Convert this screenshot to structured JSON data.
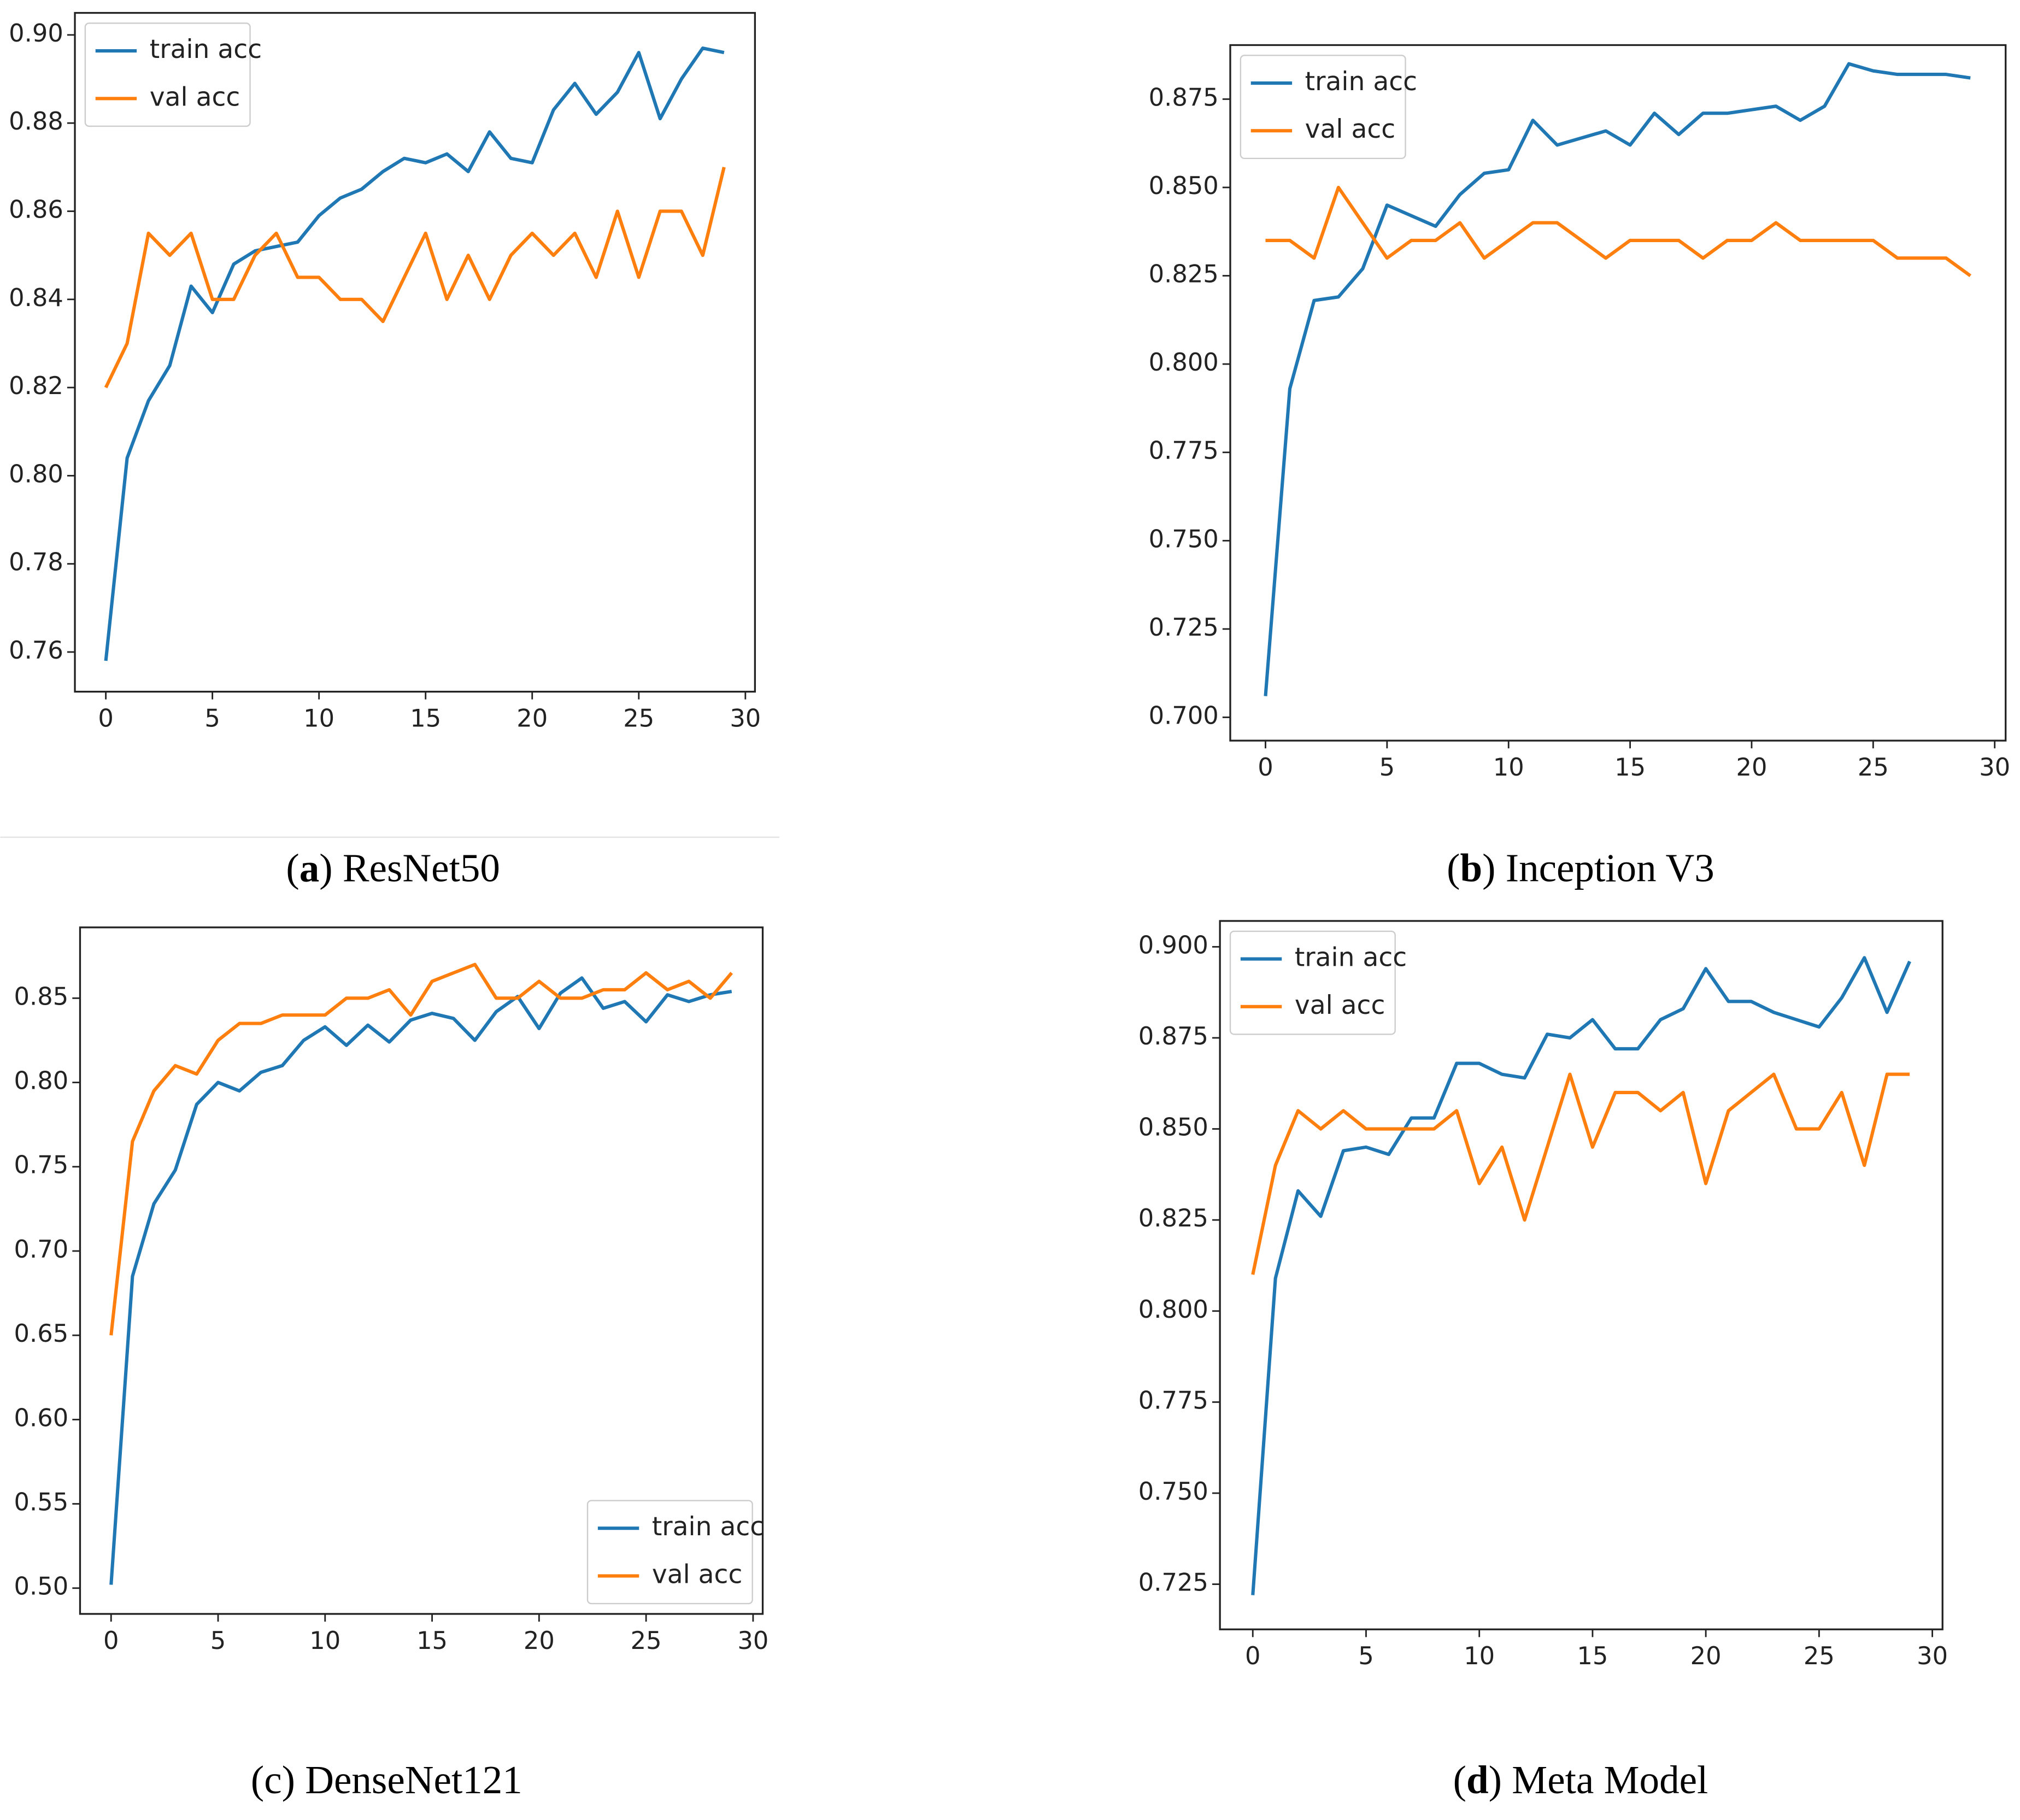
{
  "chart_data": [
    {
      "type": "line",
      "caption": [
        "(",
        "a",
        ") ResNet50"
      ],
      "caption_bold": true,
      "x": [
        0,
        1,
        2,
        3,
        4,
        5,
        6,
        7,
        8,
        9,
        10,
        11,
        12,
        13,
        14,
        15,
        16,
        17,
        18,
        19,
        20,
        21,
        22,
        23,
        24,
        25,
        26,
        27,
        28,
        29
      ],
      "series": [
        {
          "name": "train acc",
          "color": "#1f77b4",
          "values": [
            0.758,
            0.804,
            0.817,
            0.825,
            0.843,
            0.837,
            0.848,
            0.851,
            0.852,
            0.853,
            0.859,
            0.863,
            0.865,
            0.869,
            0.872,
            0.871,
            0.873,
            0.869,
            0.878,
            0.872,
            0.871,
            0.883,
            0.889,
            0.882,
            0.887,
            0.896,
            0.881,
            0.89,
            0.897,
            0.896
          ]
        },
        {
          "name": "val acc",
          "color": "#ff7f0e",
          "values": [
            0.82,
            0.83,
            0.855,
            0.85,
            0.855,
            0.84,
            0.84,
            0.85,
            0.855,
            0.845,
            0.845,
            0.84,
            0.84,
            0.835,
            0.845,
            0.855,
            0.84,
            0.85,
            0.84,
            0.85,
            0.855,
            0.85,
            0.855,
            0.845,
            0.86,
            0.845,
            0.86,
            0.86,
            0.85,
            0.87
          ]
        }
      ],
      "xlim": [
        -1.45,
        30.45
      ],
      "xticks": [
        0,
        5,
        10,
        15,
        20,
        25,
        30
      ],
      "ylim": [
        0.751,
        0.905
      ],
      "yticks": [
        0.76,
        0.78,
        {
          "value": 0.8,
          "label": "0.80"
        },
        0.82,
        0.84,
        0.86,
        0.88,
        {
          "value": 0.9,
          "label": "0.90"
        }
      ],
      "legend": "upper left"
    },
    {
      "type": "line",
      "caption": [
        "(",
        "b",
        ") Inception V3"
      ],
      "caption_bold": true,
      "x": [
        0,
        1,
        2,
        3,
        4,
        5,
        6,
        7,
        8,
        9,
        10,
        11,
        12,
        13,
        14,
        15,
        16,
        17,
        18,
        19,
        20,
        21,
        22,
        23,
        24,
        25,
        26,
        27,
        28,
        29
      ],
      "series": [
        {
          "name": "train acc",
          "color": "#1f77b4",
          "values": [
            0.706,
            0.793,
            0.818,
            0.819,
            0.827,
            0.845,
            0.842,
            0.839,
            0.848,
            0.854,
            0.855,
            0.869,
            0.862,
            0.864,
            0.866,
            0.862,
            0.871,
            0.865,
            0.871,
            0.871,
            0.872,
            0.873,
            0.869,
            0.873,
            0.885,
            0.883,
            0.882,
            0.882,
            0.882,
            0.881
          ]
        },
        {
          "name": "val acc",
          "color": "#ff7f0e",
          "values": [
            0.835,
            0.835,
            0.83,
            0.85,
            0.84,
            0.83,
            0.835,
            0.835,
            0.84,
            0.83,
            0.835,
            0.84,
            0.84,
            0.835,
            0.83,
            0.835,
            0.835,
            0.835,
            0.83,
            0.835,
            0.835,
            0.84,
            0.835,
            0.835,
            0.835,
            0.835,
            0.83,
            0.83,
            0.83,
            0.825
          ]
        }
      ],
      "xlim": [
        -1.45,
        30.45
      ],
      "xticks": [
        0,
        5,
        10,
        15,
        20,
        25,
        30
      ],
      "ylim": [
        0.6934,
        0.8903
      ],
      "yticks": [
        {
          "value": 0.7,
          "label": "0.700"
        },
        0.725,
        {
          "value": 0.75,
          "label": "0.750"
        },
        0.775,
        {
          "value": 0.8,
          "label": "0.800"
        },
        0.825,
        {
          "value": 0.85,
          "label": "0.850"
        },
        0.875
      ],
      "legend": "upper left"
    },
    {
      "type": "line",
      "caption": [
        "(",
        "c",
        ") DenseNet121"
      ],
      "caption_bold": false,
      "x": [
        0,
        1,
        2,
        3,
        4,
        5,
        6,
        7,
        8,
        9,
        10,
        11,
        12,
        13,
        14,
        15,
        16,
        17,
        18,
        19,
        20,
        21,
        22,
        23,
        24,
        25,
        26,
        27,
        28,
        29
      ],
      "series": [
        {
          "name": "train acc",
          "color": "#1f77b4",
          "values": [
            0.502,
            0.685,
            0.728,
            0.748,
            0.787,
            0.8,
            0.795,
            0.806,
            0.81,
            0.825,
            0.833,
            0.822,
            0.834,
            0.824,
            0.837,
            0.841,
            0.838,
            0.825,
            0.842,
            0.851,
            0.832,
            0.853,
            0.862,
            0.844,
            0.848,
            0.836,
            0.852,
            0.848,
            0.852,
            0.854
          ]
        },
        {
          "name": "val acc",
          "color": "#ff7f0e",
          "values": [
            0.65,
            0.765,
            0.795,
            0.81,
            0.805,
            0.825,
            0.835,
            0.835,
            0.84,
            0.84,
            0.84,
            0.85,
            0.85,
            0.855,
            0.84,
            0.86,
            0.865,
            0.87,
            0.85,
            0.85,
            0.86,
            0.85,
            0.85,
            0.855,
            0.855,
            0.865,
            0.855,
            0.86,
            0.85,
            0.865
          ]
        }
      ],
      "xlim": [
        -1.45,
        30.45
      ],
      "xticks": [
        0,
        5,
        10,
        15,
        20,
        25,
        30
      ],
      "ylim": [
        0.4847,
        0.892
      ],
      "yticks": [
        {
          "value": 0.5,
          "label": "0.50"
        },
        0.55,
        {
          "value": 0.6,
          "label": "0.60"
        },
        0.65,
        {
          "value": 0.7,
          "label": "0.70"
        },
        0.75,
        {
          "value": 0.8,
          "label": "0.80"
        },
        0.85
      ],
      "legend": "lower right"
    },
    {
      "type": "line",
      "caption": [
        "(",
        "d",
        ") Meta Model"
      ],
      "caption_bold": true,
      "x": [
        0,
        1,
        2,
        3,
        4,
        5,
        6,
        7,
        8,
        9,
        10,
        11,
        12,
        13,
        14,
        15,
        16,
        17,
        18,
        19,
        20,
        21,
        22,
        23,
        24,
        25,
        26,
        27,
        28,
        29
      ],
      "series": [
        {
          "name": "train acc",
          "color": "#1f77b4",
          "values": [
            0.722,
            0.809,
            0.833,
            0.826,
            0.844,
            0.845,
            0.843,
            0.853,
            0.853,
            0.868,
            0.868,
            0.865,
            0.864,
            0.876,
            0.875,
            0.88,
            0.872,
            0.872,
            0.88,
            0.883,
            0.894,
            0.885,
            0.885,
            0.882,
            0.88,
            0.878,
            0.886,
            0.897,
            0.882,
            0.896
          ]
        },
        {
          "name": "val acc",
          "color": "#ff7f0e",
          "values": [
            0.81,
            0.84,
            0.855,
            0.85,
            0.855,
            0.85,
            0.85,
            0.85,
            0.85,
            0.855,
            0.835,
            0.845,
            0.825,
            0.845,
            0.865,
            0.845,
            0.86,
            0.86,
            0.855,
            0.86,
            0.835,
            0.855,
            0.86,
            0.865,
            0.85,
            0.85,
            0.86,
            0.84,
            0.865,
            0.865
          ]
        }
      ],
      "xlim": [
        -1.45,
        30.45
      ],
      "xticks": [
        0,
        5,
        10,
        15,
        20,
        25,
        30
      ],
      "ylim": [
        0.7126,
        0.9071
      ],
      "yticks": [
        0.725,
        {
          "value": 0.75,
          "label": "0.750"
        },
        0.775,
        {
          "value": 0.8,
          "label": "0.800"
        },
        0.825,
        {
          "value": 0.85,
          "label": "0.850"
        },
        0.875,
        {
          "value": 0.9,
          "label": "0.900"
        }
      ],
      "legend": "upper left"
    }
  ]
}
